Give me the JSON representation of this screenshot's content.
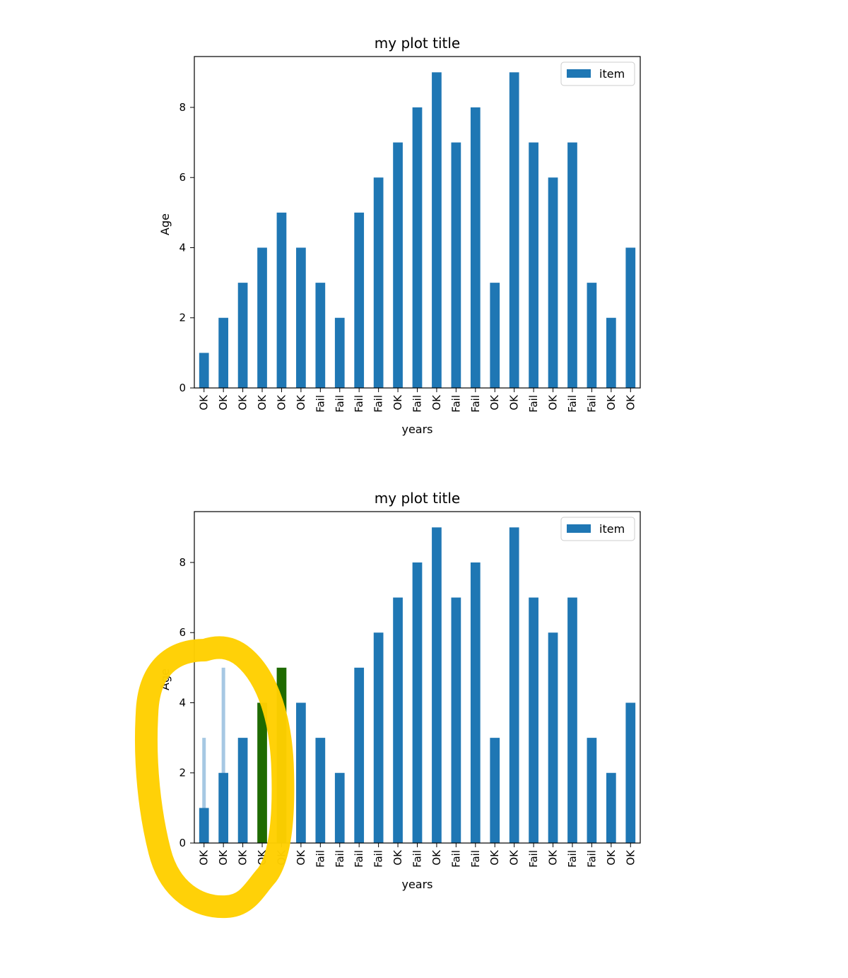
{
  "colors": {
    "bar": "#1f77b4",
    "highlight_marker": "#ffd000",
    "highlight_bar": "#1f6b00",
    "ghost_bar": "#a6c8e3"
  },
  "chart_data": [
    {
      "type": "bar",
      "title": "my plot title",
      "xlabel": "years",
      "ylabel": "Age",
      "categories": [
        "OK",
        "OK",
        "OK",
        "OK",
        "OK",
        "OK",
        "Fail",
        "Fail",
        "Fail",
        "Fail",
        "OK",
        "Fail",
        "OK",
        "Fail",
        "Fail",
        "OK",
        "OK",
        "Fail",
        "OK",
        "Fail",
        "Fail",
        "OK",
        "OK"
      ],
      "series": [
        {
          "name": "item",
          "values": [
            1,
            2,
            3,
            4,
            5,
            4,
            3,
            2,
            5,
            6,
            7,
            8,
            9,
            7,
            8,
            3,
            9,
            7,
            6,
            7,
            3,
            2,
            4
          ]
        }
      ],
      "ylim": [
        0,
        9.45
      ],
      "yticks": [
        0,
        2,
        4,
        6,
        8
      ],
      "legend": "top-right",
      "grid": false
    },
    {
      "type": "bar",
      "title": "my plot title",
      "xlabel": "years",
      "ylabel": "Age",
      "categories": [
        "OK",
        "OK",
        "OK",
        "OK",
        "OK",
        "OK",
        "Fail",
        "Fail",
        "Fail",
        "Fail",
        "OK",
        "Fail",
        "OK",
        "Fail",
        "Fail",
        "OK",
        "OK",
        "Fail",
        "OK",
        "Fail",
        "Fail",
        "OK",
        "OK"
      ],
      "series": [
        {
          "name": "item",
          "values": [
            1,
            2,
            3,
            4,
            5,
            4,
            3,
            2,
            5,
            6,
            7,
            8,
            9,
            7,
            8,
            3,
            9,
            7,
            6,
            7,
            3,
            2,
            4
          ]
        }
      ],
      "ghost_bars": [
        {
          "category_index": 0,
          "value": 3
        },
        {
          "category_index": 1,
          "value": 5
        }
      ],
      "highlighted_bars": [
        3,
        4
      ],
      "ylim": [
        0,
        9.45
      ],
      "yticks": [
        0,
        2,
        4,
        6,
        8
      ],
      "legend": "top-right",
      "grid": false,
      "annotation": "yellow freehand loop around the first five bars"
    }
  ]
}
